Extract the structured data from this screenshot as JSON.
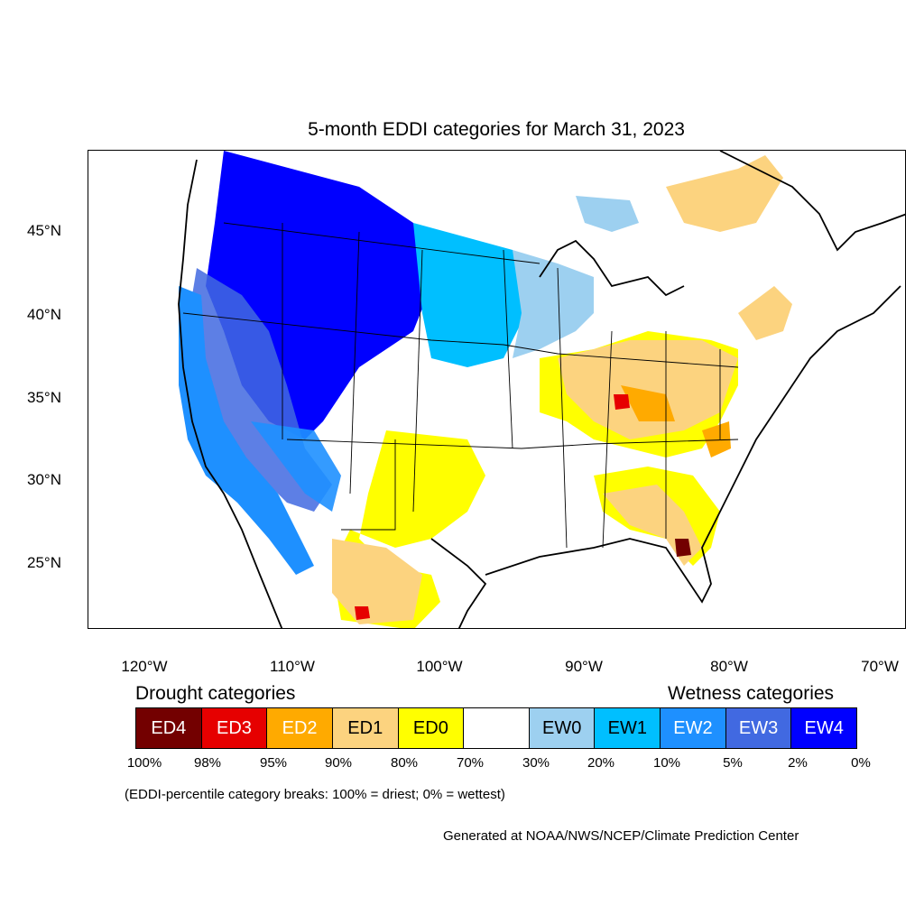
{
  "title": "5-month EDDI categories for March 31, 2023",
  "latitude_labels": [
    "45°N",
    "40°N",
    "35°N",
    "30°N",
    "25°N"
  ],
  "longitude_labels": [
    "120°W",
    "110°W",
    "100°W",
    "90°W",
    "80°W",
    "70°W"
  ],
  "legend": {
    "drought_heading": "Drought categories",
    "wetness_heading": "Wetness categories",
    "categories": [
      {
        "label": "ED4",
        "color": "#730000",
        "text_color": "#ffffff"
      },
      {
        "label": "ED3",
        "color": "#e60000",
        "text_color": "#ffffff"
      },
      {
        "label": "ED2",
        "color": "#ffaa00",
        "text_color": "#ffffff"
      },
      {
        "label": "ED1",
        "color": "#fcd37f",
        "text_color": "#000000"
      },
      {
        "label": "ED0",
        "color": "#ffff00",
        "text_color": "#000000"
      },
      {
        "label": "",
        "color": "#ffffff",
        "text_color": "#000000"
      },
      {
        "label": "EW0",
        "color": "#9dd0f0",
        "text_color": "#000000"
      },
      {
        "label": "EW1",
        "color": "#00bfff",
        "text_color": "#000000"
      },
      {
        "label": "EW2",
        "color": "#1e90ff",
        "text_color": "#ffffff"
      },
      {
        "label": "EW3",
        "color": "#4169e1",
        "text_color": "#ffffff"
      },
      {
        "label": "EW4",
        "color": "#0000ff",
        "text_color": "#ffffff"
      }
    ],
    "percentile_breaks": [
      "100%",
      "98%",
      "95%",
      "90%",
      "80%",
      "70%",
      "30%",
      "20%",
      "10%",
      "5%",
      "2%",
      "0%"
    ]
  },
  "breaks_note": "(EDDI-percentile category breaks: 100% = driest; 0% = wettest)",
  "credit": "Generated at NOAA/NWS/NCEP/Climate Prediction Center"
}
